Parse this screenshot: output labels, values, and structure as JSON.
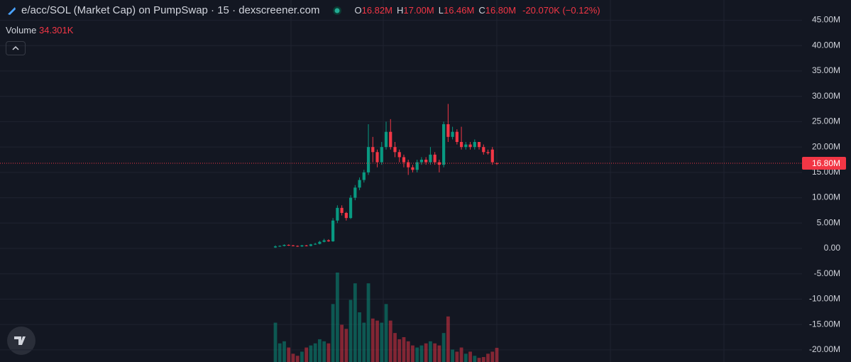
{
  "chart_data": {
    "type": "candlestick",
    "title": "e/acc/SOL (Market Cap) on PumpSwap · 15 · dexscreener.com",
    "ohlc_legend": [
      {
        "label": "O",
        "value": "16.82M"
      },
      {
        "label": "H",
        "value": "17.00M"
      },
      {
        "label": "L",
        "value": "16.46M"
      },
      {
        "label": "C",
        "value": "16.80M"
      }
    ],
    "change": "-20.070K (−0.12%)",
    "volume_title": "Volume",
    "volume_label": "34.301K",
    "up_color": "#089981",
    "down_color": "#f23645",
    "open": [
      200000,
      400000,
      500000,
      700000,
      600000,
      500000,
      400000,
      600000,
      500000,
      800000,
      900000,
      1300000,
      1600000,
      1400000,
      5500000,
      8000000,
      7000000,
      6000000,
      10000000,
      12000000,
      13500000,
      15000000,
      20000000,
      19000000,
      17000000,
      20000000,
      23000000,
      20000000,
      19000000,
      18000000,
      17000000,
      16000000,
      15500000,
      17000000,
      17500000,
      17000000,
      18500000,
      17000000,
      16500000,
      24500000,
      22000000,
      23000000,
      21000000,
      20000000,
      20500000,
      20000000,
      21000000,
      20000000,
      19000000,
      19500000,
      16820000
    ],
    "high": [
      600000,
      600000,
      800000,
      800000,
      700000,
      600000,
      700000,
      700000,
      900000,
      1100000,
      1500000,
      1900000,
      1800000,
      6000000,
      8500000,
      8500000,
      7200000,
      10500000,
      12500000,
      14000000,
      15500000,
      24500000,
      22000000,
      19500000,
      21000000,
      25000000,
      25500000,
      21000000,
      19500000,
      18500000,
      17500000,
      16500000,
      17500000,
      18000000,
      18000000,
      20000000,
      19000000,
      17500000,
      25000000,
      28500000,
      24000000,
      23500000,
      24000000,
      21000000,
      21000000,
      21500000,
      21000000,
      20500000,
      19500000,
      20000000,
      17000000
    ],
    "low": [
      100000,
      300000,
      400000,
      500000,
      400000,
      300000,
      300000,
      400000,
      400000,
      700000,
      800000,
      1200000,
      1300000,
      1300000,
      5000000,
      6500000,
      5500000,
      5800000,
      9500000,
      11500000,
      13000000,
      14500000,
      17000000,
      16000000,
      16500000,
      19500000,
      19500000,
      18000000,
      17000000,
      16000000,
      14500000,
      15000000,
      15000000,
      16500000,
      16500000,
      16500000,
      16500000,
      15000000,
      16000000,
      21000000,
      21500000,
      20500000,
      19500000,
      19500000,
      19500000,
      19500000,
      19500000,
      18500000,
      18500000,
      16500000,
      16460000
    ],
    "close": [
      400000,
      500000,
      700000,
      600000,
      500000,
      400000,
      600000,
      500000,
      800000,
      900000,
      1300000,
      1600000,
      1400000,
      5500000,
      8000000,
      7000000,
      6000000,
      10000000,
      12000000,
      13500000,
      15000000,
      20000000,
      19000000,
      17000000,
      20000000,
      23000000,
      20000000,
      19000000,
      18000000,
      17000000,
      16000000,
      15500000,
      17000000,
      17500000,
      17000000,
      18500000,
      17000000,
      16500000,
      24500000,
      22000000,
      23000000,
      21000000,
      20000000,
      20500000,
      20000000,
      21000000,
      20000000,
      19000000,
      18800000,
      17000000,
      16800000
    ],
    "volume": [
      95000,
      45000,
      50000,
      35000,
      20000,
      15000,
      25000,
      35000,
      40000,
      45000,
      55000,
      50000,
      45000,
      140000,
      216000,
      90000,
      80000,
      150000,
      190000,
      120000,
      95000,
      190000,
      105000,
      100000,
      95000,
      140000,
      100000,
      70000,
      55000,
      60000,
      50000,
      40000,
      35000,
      40000,
      45000,
      50000,
      45000,
      40000,
      70000,
      110000,
      30000,
      25000,
      35000,
      20000,
      25000,
      15000,
      10000,
      12000,
      20000,
      25000,
      34301
    ],
    "last_price": {
      "value": 16800000,
      "label": "16.80M"
    },
    "ylim": [
      -22400000,
      49000000
    ],
    "yticks": [
      {
        "value": 45000000,
        "label": "45.00M"
      },
      {
        "value": 40000000,
        "label": "40.00M"
      },
      {
        "value": 35000000,
        "label": "35.00M"
      },
      {
        "value": 30000000,
        "label": "30.00M"
      },
      {
        "value": 25000000,
        "label": "25.00M"
      },
      {
        "value": 20000000,
        "label": "20.00M"
      },
      {
        "value": 15000000,
        "label": "15.00M"
      },
      {
        "value": 10000000,
        "label": "10.00M"
      },
      {
        "value": 5000000,
        "label": "5.00M"
      },
      {
        "value": 0,
        "label": "0.00"
      },
      {
        "value": -5000000,
        "label": "-5.00M"
      },
      {
        "value": -10000000,
        "label": "-10.00M"
      },
      {
        "value": -15000000,
        "label": "-15.00M"
      },
      {
        "value": -20000000,
        "label": "-20.00M"
      }
    ],
    "grid": true
  }
}
